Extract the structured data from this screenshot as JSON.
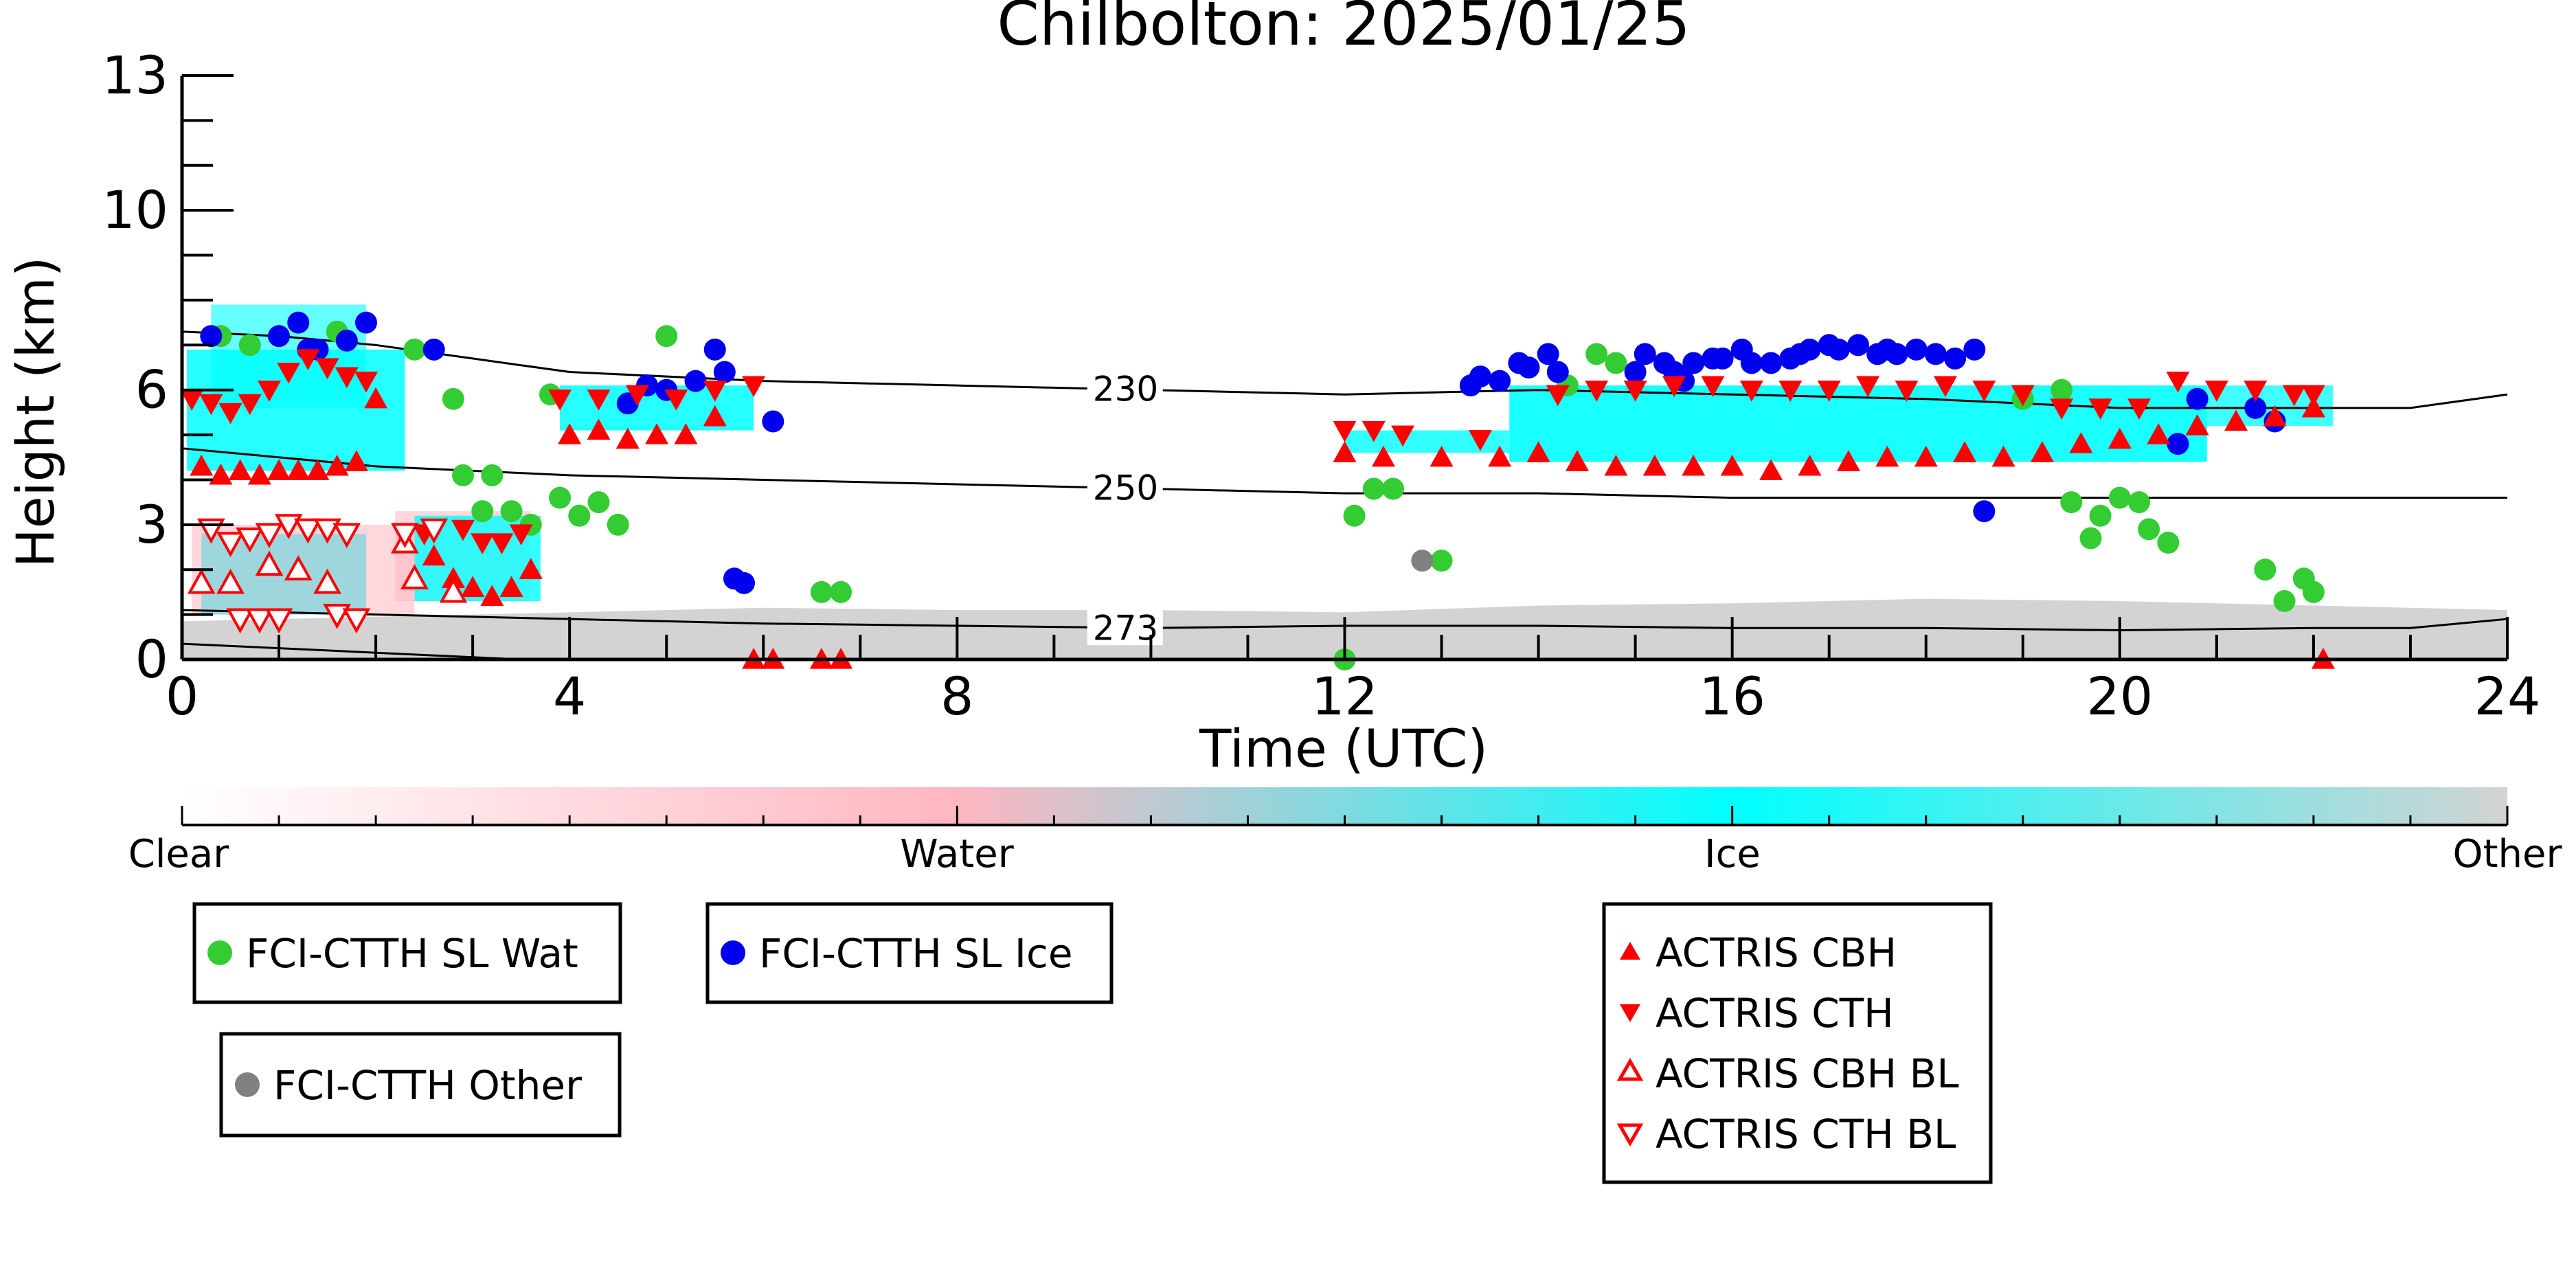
{
  "chart_data": {
    "type": "scatter",
    "title": "Chilbolton: 2025/01/25",
    "xlabel": "Time (UTC)",
    "ylabel": "Height (km)",
    "xlim": [
      0,
      24
    ],
    "ylim": [
      0,
      13
    ],
    "x_ticks": [
      "0",
      "4",
      "8",
      "12",
      "16",
      "20",
      "24"
    ],
    "x_tick_values": [
      0,
      4,
      8,
      12,
      16,
      20,
      24
    ],
    "y_ticks": [
      "0",
      "3",
      "6",
      "10",
      "13"
    ],
    "y_tick_values": [
      0,
      3,
      6,
      10,
      13
    ],
    "grid": false,
    "colorbar": {
      "labels": [
        "Clear",
        "Water",
        "Ice",
        "Other"
      ],
      "colors": [
        "#ffffff",
        "#ffb6c1",
        "#00ffff",
        "#d3d3d3"
      ]
    },
    "isotherms": [
      {
        "label": "230",
        "label_x": 9.4,
        "points": [
          [
            0,
            7.3
          ],
          [
            1,
            7.2
          ],
          [
            2,
            7.0
          ],
          [
            3,
            6.7
          ],
          [
            4,
            6.4
          ],
          [
            6,
            6.2
          ],
          [
            8,
            6.1
          ],
          [
            10,
            6.0
          ],
          [
            12,
            5.9
          ],
          [
            14,
            6.0
          ],
          [
            16,
            5.9
          ],
          [
            18,
            5.8
          ],
          [
            20,
            5.6
          ],
          [
            22,
            5.6
          ],
          [
            23,
            5.6
          ],
          [
            24,
            5.9
          ]
        ]
      },
      {
        "label": "250",
        "label_x": 9.4,
        "points": [
          [
            0,
            4.7
          ],
          [
            1,
            4.5
          ],
          [
            2,
            4.3
          ],
          [
            4,
            4.1
          ],
          [
            6,
            4.0
          ],
          [
            8,
            3.9
          ],
          [
            10,
            3.8
          ],
          [
            12,
            3.7
          ],
          [
            14,
            3.7
          ],
          [
            16,
            3.6
          ],
          [
            18,
            3.6
          ],
          [
            20,
            3.6
          ],
          [
            22,
            3.6
          ],
          [
            24,
            3.6
          ]
        ]
      },
      {
        "label": "273",
        "label_x": 9.4,
        "points": [
          [
            0,
            1.1
          ],
          [
            2,
            1.0
          ],
          [
            4,
            0.9
          ],
          [
            6,
            0.8
          ],
          [
            8,
            0.75
          ],
          [
            10,
            0.7
          ],
          [
            12,
            0.75
          ],
          [
            14,
            0.75
          ],
          [
            16,
            0.7
          ],
          [
            18,
            0.7
          ],
          [
            20,
            0.65
          ],
          [
            22,
            0.7
          ],
          [
            23,
            0.7
          ],
          [
            24,
            0.9
          ]
        ]
      },
      {
        "label": "",
        "label_x": null,
        "points": [
          [
            0,
            0.35
          ],
          [
            1,
            0.25
          ],
          [
            2,
            0.15
          ],
          [
            3,
            0.05
          ],
          [
            3.5,
            0.0
          ]
        ]
      }
    ],
    "series": [
      {
        "name": "FCI-CTTH SL Wat",
        "color": "#33cc33",
        "marker": "circle",
        "points": [
          [
            0.4,
            7.2
          ],
          [
            0.7,
            7.0
          ],
          [
            1.6,
            7.3
          ],
          [
            2.4,
            6.9
          ],
          [
            2.8,
            5.8
          ],
          [
            2.9,
            4.1
          ],
          [
            3.1,
            3.3
          ],
          [
            3.2,
            4.1
          ],
          [
            3.4,
            3.3
          ],
          [
            3.6,
            3.0
          ],
          [
            3.8,
            5.9
          ],
          [
            3.9,
            3.6
          ],
          [
            4.1,
            3.2
          ],
          [
            4.3,
            3.5
          ],
          [
            4.5,
            3.0
          ],
          [
            5.0,
            7.2
          ],
          [
            6.6,
            1.5
          ],
          [
            6.8,
            1.5
          ],
          [
            12.0,
            0.0
          ],
          [
            12.1,
            3.2
          ],
          [
            12.3,
            3.8
          ],
          [
            12.5,
            3.8
          ],
          [
            13.0,
            2.2
          ],
          [
            14.3,
            6.1
          ],
          [
            14.6,
            6.8
          ],
          [
            14.8,
            6.6
          ],
          [
            19.0,
            5.8
          ],
          [
            19.4,
            6.0
          ],
          [
            19.5,
            3.5
          ],
          [
            19.7,
            2.7
          ],
          [
            19.8,
            3.2
          ],
          [
            20.0,
            3.6
          ],
          [
            20.2,
            3.5
          ],
          [
            20.3,
            2.9
          ],
          [
            20.5,
            2.6
          ],
          [
            21.5,
            2.0
          ],
          [
            21.7,
            1.3
          ],
          [
            21.9,
            1.8
          ],
          [
            22.0,
            1.5
          ]
        ]
      },
      {
        "name": "FCI-CTTH SL Ice",
        "color": "#0000ee",
        "marker": "circle",
        "points": [
          [
            0.3,
            7.2
          ],
          [
            1.0,
            7.2
          ],
          [
            1.2,
            7.5
          ],
          [
            1.3,
            6.9
          ],
          [
            1.4,
            6.9
          ],
          [
            1.7,
            7.1
          ],
          [
            1.9,
            7.5
          ],
          [
            2.6,
            6.9
          ],
          [
            4.6,
            5.7
          ],
          [
            4.8,
            6.1
          ],
          [
            5.0,
            6.0
          ],
          [
            5.3,
            6.2
          ],
          [
            5.5,
            6.9
          ],
          [
            5.6,
            6.4
          ],
          [
            6.1,
            5.3
          ],
          [
            5.7,
            1.8
          ],
          [
            5.8,
            1.7
          ],
          [
            13.3,
            6.1
          ],
          [
            13.4,
            6.3
          ],
          [
            13.6,
            6.2
          ],
          [
            13.8,
            6.6
          ],
          [
            13.9,
            6.5
          ],
          [
            14.1,
            6.8
          ],
          [
            14.2,
            6.4
          ],
          [
            15.0,
            6.4
          ],
          [
            15.1,
            6.8
          ],
          [
            15.3,
            6.6
          ],
          [
            15.4,
            6.4
          ],
          [
            15.5,
            6.2
          ],
          [
            15.6,
            6.6
          ],
          [
            15.8,
            6.7
          ],
          [
            15.9,
            6.7
          ],
          [
            16.1,
            6.9
          ],
          [
            16.2,
            6.6
          ],
          [
            16.4,
            6.6
          ],
          [
            16.6,
            6.7
          ],
          [
            16.7,
            6.8
          ],
          [
            16.8,
            6.9
          ],
          [
            17.0,
            7.0
          ],
          [
            17.1,
            6.9
          ],
          [
            17.3,
            7.0
          ],
          [
            17.5,
            6.8
          ],
          [
            17.6,
            6.9
          ],
          [
            17.7,
            6.8
          ],
          [
            17.9,
            6.9
          ],
          [
            18.1,
            6.8
          ],
          [
            18.3,
            6.7
          ],
          [
            18.5,
            6.9
          ],
          [
            18.6,
            3.3
          ],
          [
            20.6,
            4.8
          ],
          [
            20.8,
            5.8
          ],
          [
            21.4,
            5.6
          ],
          [
            21.6,
            5.3
          ]
        ]
      },
      {
        "name": "FCI-CTTH Other",
        "color": "#808080",
        "marker": "circle",
        "points": [
          [
            12.8,
            2.2
          ]
        ]
      },
      {
        "name": "ACTRIS CBH",
        "color": "#ff0000",
        "marker": "triangle-up",
        "filled": true,
        "points": [
          [
            0.2,
            4.3
          ],
          [
            0.4,
            4.1
          ],
          [
            0.6,
            4.2
          ],
          [
            0.8,
            4.1
          ],
          [
            1.0,
            4.2
          ],
          [
            1.2,
            4.2
          ],
          [
            1.4,
            4.2
          ],
          [
            1.6,
            4.3
          ],
          [
            1.8,
            4.4
          ],
          [
            2.0,
            5.8
          ],
          [
            2.6,
            2.3
          ],
          [
            2.8,
            1.8
          ],
          [
            3.0,
            1.6
          ],
          [
            3.2,
            1.4
          ],
          [
            3.4,
            1.6
          ],
          [
            3.6,
            2.0
          ],
          [
            4.0,
            5.0
          ],
          [
            4.3,
            5.1
          ],
          [
            4.6,
            4.9
          ],
          [
            4.9,
            5.0
          ],
          [
            5.2,
            5.0
          ],
          [
            5.5,
            5.4
          ],
          [
            5.9,
            0.0
          ],
          [
            6.1,
            0.0
          ],
          [
            6.6,
            0.0
          ],
          [
            6.8,
            0.0
          ],
          [
            12.0,
            4.6
          ],
          [
            12.4,
            4.5
          ],
          [
            13.0,
            4.5
          ],
          [
            13.6,
            4.5
          ],
          [
            14.0,
            4.6
          ],
          [
            14.4,
            4.4
          ],
          [
            14.8,
            4.3
          ],
          [
            15.2,
            4.3
          ],
          [
            15.6,
            4.3
          ],
          [
            16.0,
            4.3
          ],
          [
            16.4,
            4.2
          ],
          [
            16.8,
            4.3
          ],
          [
            17.2,
            4.4
          ],
          [
            17.6,
            4.5
          ],
          [
            18.0,
            4.5
          ],
          [
            18.4,
            4.6
          ],
          [
            18.8,
            4.5
          ],
          [
            19.2,
            4.6
          ],
          [
            19.6,
            4.8
          ],
          [
            20.0,
            4.9
          ],
          [
            20.4,
            5.0
          ],
          [
            20.8,
            5.2
          ],
          [
            21.2,
            5.3
          ],
          [
            21.6,
            5.4
          ],
          [
            22.0,
            5.6
          ],
          [
            22.1,
            0.0
          ]
        ]
      },
      {
        "name": "ACTRIS CTH",
        "color": "#ff0000",
        "marker": "triangle-down",
        "filled": true,
        "points": [
          [
            0.1,
            5.8
          ],
          [
            0.3,
            5.7
          ],
          [
            0.5,
            5.5
          ],
          [
            0.7,
            5.7
          ],
          [
            0.9,
            6.0
          ],
          [
            1.1,
            6.4
          ],
          [
            1.3,
            6.7
          ],
          [
            1.5,
            6.5
          ],
          [
            1.7,
            6.3
          ],
          [
            1.9,
            6.2
          ],
          [
            2.5,
            2.8
          ],
          [
            2.9,
            2.9
          ],
          [
            3.1,
            2.6
          ],
          [
            3.3,
            2.6
          ],
          [
            3.5,
            2.8
          ],
          [
            3.9,
            5.8
          ],
          [
            4.3,
            5.8
          ],
          [
            4.7,
            5.9
          ],
          [
            5.1,
            5.8
          ],
          [
            5.5,
            6.0
          ],
          [
            5.9,
            6.1
          ],
          [
            12.0,
            5.1
          ],
          [
            12.3,
            5.1
          ],
          [
            12.6,
            5.0
          ],
          [
            13.4,
            4.9
          ],
          [
            14.2,
            5.9
          ],
          [
            14.6,
            6.0
          ],
          [
            15.0,
            6.0
          ],
          [
            15.4,
            6.1
          ],
          [
            15.8,
            6.1
          ],
          [
            16.2,
            6.0
          ],
          [
            16.6,
            6.0
          ],
          [
            17.0,
            6.0
          ],
          [
            17.4,
            6.1
          ],
          [
            17.8,
            6.0
          ],
          [
            18.2,
            6.1
          ],
          [
            18.6,
            6.0
          ],
          [
            19.0,
            5.9
          ],
          [
            19.4,
            5.6
          ],
          [
            19.8,
            5.6
          ],
          [
            20.2,
            5.6
          ],
          [
            20.6,
            6.2
          ],
          [
            21.0,
            6.0
          ],
          [
            21.4,
            6.0
          ],
          [
            21.8,
            5.9
          ],
          [
            22.0,
            5.9
          ]
        ]
      },
      {
        "name": "ACTRIS CBH BL",
        "color": "#ff0000",
        "marker": "triangle-up",
        "filled": false,
        "points": [
          [
            0.2,
            1.7
          ],
          [
            0.5,
            1.7
          ],
          [
            0.9,
            2.1
          ],
          [
            1.2,
            2.0
          ],
          [
            1.5,
            1.7
          ],
          [
            2.3,
            2.6
          ],
          [
            2.4,
            1.8
          ],
          [
            2.8,
            1.5
          ]
        ]
      },
      {
        "name": "ACTRIS CTH BL",
        "color": "#ff0000",
        "marker": "triangle-down",
        "filled": false,
        "points": [
          [
            0.3,
            2.9
          ],
          [
            0.5,
            2.6
          ],
          [
            0.7,
            2.7
          ],
          [
            0.9,
            2.8
          ],
          [
            1.1,
            3.0
          ],
          [
            1.3,
            2.9
          ],
          [
            1.5,
            2.9
          ],
          [
            1.7,
            2.8
          ],
          [
            0.6,
            0.9
          ],
          [
            0.8,
            0.9
          ],
          [
            1.0,
            0.9
          ],
          [
            1.6,
            1.0
          ],
          [
            1.8,
            0.9
          ],
          [
            2.3,
            2.8
          ],
          [
            2.6,
            2.9
          ]
        ]
      }
    ]
  },
  "legends": {
    "left_top": [
      "FCI-CTTH SL Wat"
    ],
    "middle_top": [
      "FCI-CTTH SL Ice"
    ],
    "left_bottom": [
      "FCI-CTTH Other"
    ],
    "right": [
      "ACTRIS CBH",
      "ACTRIS CTH",
      "ACTRIS CBH BL",
      "ACTRIS CTH BL"
    ]
  }
}
